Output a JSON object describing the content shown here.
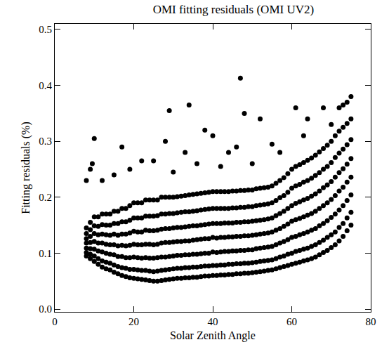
{
  "chart_data": {
    "type": "scatter",
    "title": "OMI fitting residuals (OMI UV2)",
    "x_label": "Solar Zenith Angle",
    "y_label": "Fitting residuals (%)",
    "color": "#000000",
    "marker": "circle",
    "xlim": [
      0,
      80
    ],
    "xticks": [
      0,
      20,
      40,
      60,
      80
    ],
    "ylim": [
      -0.005,
      0.51
    ],
    "yticks": [
      {
        "value": 0,
        "label": "0.0"
      },
      0.1,
      0.2,
      0.3,
      0.4,
      0.5
    ],
    "x": [
      8,
      8,
      8,
      8,
      8,
      8,
      8,
      9,
      9,
      9,
      9,
      9,
      9,
      9,
      10,
      10,
      10,
      10,
      10,
      10,
      10,
      11,
      11,
      11,
      11,
      11,
      11,
      11,
      12,
      12,
      12,
      12,
      12,
      12,
      12,
      13,
      13,
      13,
      13,
      13,
      13,
      13,
      14,
      14,
      14,
      14,
      14,
      14,
      14,
      15,
      15,
      15,
      15,
      15,
      15,
      15,
      16,
      16,
      16,
      16,
      16,
      16,
      16,
      17,
      17,
      17,
      17,
      17,
      17,
      17,
      18,
      18,
      18,
      18,
      18,
      18,
      18,
      19,
      19,
      19,
      19,
      19,
      19,
      19,
      20,
      20,
      20,
      20,
      20,
      20,
      20,
      21,
      21,
      21,
      21,
      21,
      21,
      21,
      22,
      22,
      22,
      22,
      22,
      22,
      22,
      23,
      23,
      23,
      23,
      23,
      23,
      23,
      24,
      24,
      24,
      24,
      24,
      24,
      24,
      25,
      25,
      25,
      25,
      25,
      25,
      25,
      26,
      26,
      26,
      26,
      26,
      26,
      26,
      27,
      27,
      27,
      27,
      27,
      27,
      27,
      28,
      28,
      28,
      28,
      28,
      28,
      28,
      29,
      29,
      29,
      29,
      29,
      29,
      29,
      30,
      30,
      30,
      30,
      30,
      30,
      30,
      31,
      31,
      31,
      31,
      31,
      31,
      31,
      32,
      32,
      32,
      32,
      32,
      32,
      32,
      33,
      33,
      33,
      33,
      33,
      33,
      33,
      34,
      34,
      34,
      34,
      34,
      34,
      34,
      35,
      35,
      35,
      35,
      35,
      35,
      35,
      36,
      36,
      36,
      36,
      36,
      36,
      36,
      37,
      37,
      37,
      37,
      37,
      37,
      37,
      38,
      38,
      38,
      38,
      38,
      38,
      38,
      39,
      39,
      39,
      39,
      39,
      39,
      39,
      40,
      40,
      40,
      40,
      40,
      40,
      40,
      41,
      41,
      41,
      41,
      41,
      41,
      41,
      42,
      42,
      42,
      42,
      42,
      42,
      42,
      43,
      43,
      43,
      43,
      43,
      43,
      43,
      44,
      44,
      44,
      44,
      44,
      44,
      44,
      45,
      45,
      45,
      45,
      45,
      45,
      45,
      46,
      46,
      46,
      46,
      46,
      46,
      46,
      47,
      47,
      47,
      47,
      47,
      47,
      47,
      48,
      48,
      48,
      48,
      48,
      48,
      48,
      49,
      49,
      49,
      49,
      49,
      49,
      49,
      50,
      50,
      50,
      50,
      50,
      50,
      50,
      51,
      51,
      51,
      51,
      51,
      51,
      51,
      52,
      52,
      52,
      52,
      52,
      52,
      52,
      53,
      53,
      53,
      53,
      53,
      53,
      53,
      54,
      54,
      54,
      54,
      54,
      54,
      54,
      55,
      55,
      55,
      55,
      55,
      55,
      55,
      56,
      56,
      56,
      56,
      56,
      56,
      56,
      57,
      57,
      57,
      57,
      57,
      57,
      57,
      58,
      58,
      58,
      58,
      58,
      58,
      58,
      59,
      59,
      59,
      59,
      59,
      59,
      59,
      60,
      60,
      60,
      60,
      60,
      60,
      60,
      61,
      61,
      61,
      61,
      61,
      61,
      61,
      62,
      62,
      62,
      62,
      62,
      62,
      62,
      63,
      63,
      63,
      63,
      63,
      63,
      63,
      64,
      64,
      64,
      64,
      64,
      64,
      64,
      65,
      65,
      65,
      65,
      65,
      65,
      65,
      66,
      66,
      66,
      66,
      66,
      66,
      66,
      67,
      67,
      67,
      67,
      67,
      67,
      67,
      68,
      68,
      68,
      68,
      68,
      68,
      68,
      69,
      69,
      69,
      69,
      69,
      69,
      69,
      70,
      70,
      70,
      70,
      70,
      70,
      70,
      71,
      71,
      71,
      71,
      71,
      71,
      71,
      72,
      72,
      72,
      72,
      72,
      72,
      72,
      73,
      73,
      73,
      73,
      73,
      73,
      73,
      74,
      74,
      74,
      74,
      74,
      74,
      74,
      75,
      75,
      75,
      75,
      75,
      75,
      75,
      10,
      9.5,
      9,
      8,
      17,
      12,
      19,
      22,
      25,
      28,
      29,
      34,
      38,
      40,
      44,
      47,
      48,
      52,
      55,
      61,
      64,
      68,
      73,
      75,
      74,
      30,
      36,
      42,
      50,
      57,
      63,
      70,
      72,
      15,
      33,
      46
    ],
    "values": [
      0.095,
      0.101,
      0.109,
      0.118,
      0.126,
      0.135,
      0.145,
      0.09,
      0.098,
      0.108,
      0.119,
      0.13,
      0.142,
      0.155,
      0.085,
      0.095,
      0.107,
      0.121,
      0.135,
      0.149,
      0.165,
      0.08,
      0.09,
      0.104,
      0.118,
      0.133,
      0.148,
      0.165,
      0.075,
      0.086,
      0.102,
      0.118,
      0.134,
      0.151,
      0.17,
      0.072,
      0.084,
      0.1,
      0.116,
      0.133,
      0.15,
      0.17,
      0.07,
      0.082,
      0.098,
      0.115,
      0.132,
      0.15,
      0.17,
      0.066,
      0.079,
      0.097,
      0.115,
      0.134,
      0.153,
      0.175,
      0.063,
      0.076,
      0.094,
      0.113,
      0.132,
      0.153,
      0.175,
      0.06,
      0.074,
      0.094,
      0.114,
      0.134,
      0.156,
      0.18,
      0.058,
      0.073,
      0.092,
      0.113,
      0.134,
      0.156,
      0.18,
      0.056,
      0.071,
      0.092,
      0.114,
      0.136,
      0.159,
      0.185,
      0.055,
      0.071,
      0.093,
      0.116,
      0.139,
      0.163,
      0.19,
      0.054,
      0.07,
      0.092,
      0.115,
      0.138,
      0.163,
      0.19,
      0.053,
      0.069,
      0.091,
      0.115,
      0.138,
      0.163,
      0.19,
      0.052,
      0.069,
      0.092,
      0.116,
      0.141,
      0.166,
      0.195,
      0.051,
      0.068,
      0.091,
      0.116,
      0.14,
      0.166,
      0.195,
      0.05,
      0.067,
      0.091,
      0.115,
      0.14,
      0.166,
      0.195,
      0.05,
      0.068,
      0.092,
      0.116,
      0.141,
      0.167,
      0.195,
      0.051,
      0.069,
      0.093,
      0.118,
      0.143,
      0.17,
      0.2,
      0.052,
      0.07,
      0.093,
      0.119,
      0.144,
      0.17,
      0.2,
      0.053,
      0.071,
      0.094,
      0.119,
      0.144,
      0.171,
      0.2,
      0.054,
      0.072,
      0.095,
      0.12,
      0.145,
      0.171,
      0.2,
      0.055,
      0.073,
      0.096,
      0.121,
      0.146,
      0.172,
      0.201,
      0.055,
      0.073,
      0.096,
      0.121,
      0.146,
      0.173,
      0.202,
      0.056,
      0.074,
      0.097,
      0.122,
      0.147,
      0.174,
      0.203,
      0.056,
      0.074,
      0.097,
      0.122,
      0.148,
      0.174,
      0.204,
      0.057,
      0.075,
      0.098,
      0.123,
      0.149,
      0.175,
      0.205,
      0.057,
      0.075,
      0.098,
      0.124,
      0.149,
      0.176,
      0.206,
      0.058,
      0.076,
      0.099,
      0.125,
      0.15,
      0.177,
      0.207,
      0.059,
      0.077,
      0.1,
      0.126,
      0.151,
      0.178,
      0.208,
      0.059,
      0.077,
      0.1,
      0.126,
      0.152,
      0.179,
      0.209,
      0.06,
      0.078,
      0.102,
      0.128,
      0.153,
      0.18,
      0.21,
      0.06,
      0.078,
      0.101,
      0.127,
      0.153,
      0.18,
      0.21,
      0.061,
      0.079,
      0.102,
      0.128,
      0.153,
      0.18,
      0.21,
      0.061,
      0.079,
      0.103,
      0.128,
      0.154,
      0.18,
      0.21,
      0.062,
      0.08,
      0.103,
      0.129,
      0.154,
      0.18,
      0.21,
      0.062,
      0.08,
      0.104,
      0.129,
      0.154,
      0.181,
      0.211,
      0.063,
      0.081,
      0.104,
      0.13,
      0.155,
      0.181,
      0.211,
      0.063,
      0.081,
      0.105,
      0.13,
      0.155,
      0.182,
      0.212,
      0.064,
      0.082,
      0.105,
      0.131,
      0.156,
      0.182,
      0.212,
      0.064,
      0.082,
      0.106,
      0.131,
      0.156,
      0.183,
      0.213,
      0.065,
      0.083,
      0.106,
      0.132,
      0.157,
      0.183,
      0.213,
      0.066,
      0.084,
      0.108,
      0.133,
      0.158,
      0.185,
      0.215,
      0.067,
      0.085,
      0.109,
      0.134,
      0.159,
      0.186,
      0.216,
      0.068,
      0.086,
      0.11,
      0.135,
      0.16,
      0.187,
      0.217,
      0.069,
      0.087,
      0.111,
      0.136,
      0.161,
      0.188,
      0.218,
      0.07,
      0.088,
      0.112,
      0.138,
      0.163,
      0.19,
      0.22,
      0.072,
      0.09,
      0.115,
      0.141,
      0.167,
      0.194,
      0.225,
      0.074,
      0.093,
      0.118,
      0.144,
      0.171,
      0.199,
      0.23,
      0.076,
      0.095,
      0.121,
      0.148,
      0.175,
      0.203,
      0.235,
      0.078,
      0.098,
      0.124,
      0.152,
      0.18,
      0.209,
      0.242,
      0.08,
      0.1,
      0.128,
      0.157,
      0.185,
      0.216,
      0.25,
      0.082,
      0.103,
      0.13,
      0.16,
      0.189,
      0.22,
      0.255,
      0.084,
      0.105,
      0.133,
      0.162,
      0.192,
      0.223,
      0.258,
      0.086,
      0.107,
      0.135,
      0.165,
      0.195,
      0.227,
      0.262,
      0.088,
      0.109,
      0.138,
      0.168,
      0.198,
      0.23,
      0.266,
      0.09,
      0.112,
      0.141,
      0.171,
      0.202,
      0.234,
      0.27,
      0.093,
      0.115,
      0.144,
      0.175,
      0.206,
      0.239,
      0.275,
      0.097,
      0.119,
      0.149,
      0.18,
      0.211,
      0.244,
      0.281,
      0.101,
      0.123,
      0.153,
      0.185,
      0.217,
      0.25,
      0.287,
      0.105,
      0.128,
      0.158,
      0.19,
      0.222,
      0.255,
      0.293,
      0.11,
      0.133,
      0.164,
      0.196,
      0.228,
      0.262,
      0.3,
      0.115,
      0.138,
      0.17,
      0.203,
      0.236,
      0.271,
      0.31,
      0.122,
      0.146,
      0.177,
      0.211,
      0.244,
      0.279,
      0.318,
      0.13,
      0.153,
      0.185,
      0.218,
      0.251,
      0.286,
      0.325,
      0.14,
      0.163,
      0.194,
      0.227,
      0.259,
      0.294,
      0.332,
      0.15,
      0.173,
      0.204,
      0.236,
      0.269,
      0.303,
      0.34,
      0.305,
      0.26,
      0.25,
      0.23,
      0.29,
      0.23,
      0.25,
      0.265,
      0.265,
      0.3,
      0.355,
      0.365,
      0.32,
      0.31,
      0.28,
      0.413,
      0.35,
      0.34,
      0.295,
      0.36,
      0.34,
      0.36,
      0.365,
      0.38,
      0.37,
      0.245,
      0.26,
      0.255,
      0.26,
      0.28,
      0.31,
      0.33,
      0.36,
      0.24,
      0.28,
      0.29
    ]
  }
}
